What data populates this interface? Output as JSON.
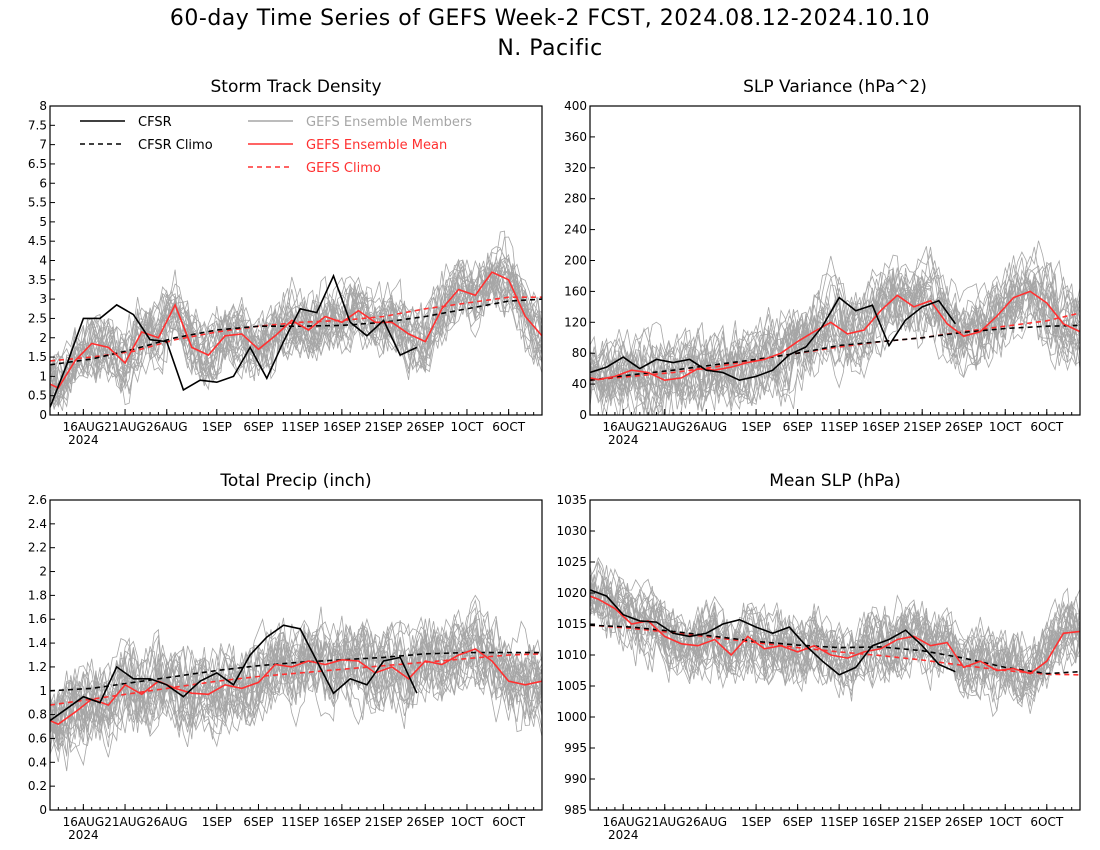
{
  "figure": {
    "title": "60-day Time Series of GEFS Week-2 FCST, 2024.08.12-2024.10.10",
    "subtitle": "N. Pacific"
  },
  "colors": {
    "cfsr": "#000000",
    "cfsr_climo": "#000000",
    "members": "#a6a6a6",
    "ens_mean": "#ff3030",
    "gefs_climo": "#ff3030",
    "frame": "#000000",
    "background": "#ffffff"
  },
  "chart_data": [
    {
      "type": "line",
      "title": "Storm Track Density",
      "x_ticks": [
        "16AUG",
        "21AUG",
        "26AUG",
        "1SEP",
        "6SEP",
        "11SEP",
        "16SEP",
        "21SEP",
        "26SEP",
        "1OCT",
        "6OCT"
      ],
      "x_tick_days": [
        4,
        9,
        14,
        20,
        25,
        30,
        35,
        40,
        45,
        50,
        55
      ],
      "x_year_label": "2024",
      "x_range_days": [
        0,
        59
      ],
      "ylim": [
        0,
        8
      ],
      "y_ticks": [
        "0",
        "0.5",
        "1",
        "1.5",
        "2",
        "2.5",
        "3",
        "3.5",
        "4",
        "4.5",
        "5",
        "5.5",
        "6",
        "6.5",
        "7",
        "7.5",
        "8"
      ],
      "legend": [
        {
          "label": "CFSR",
          "style": "solid-black"
        },
        {
          "label": "CFSR Climo",
          "style": "dashed-black"
        },
        {
          "label": "GEFS Ensemble Members",
          "style": "solid-gray"
        },
        {
          "label": "GEFS Ensemble Mean",
          "style": "solid-red"
        },
        {
          "label": "GEFS Climo",
          "style": "dashed-red"
        }
      ],
      "legend_position": "top-left",
      "member_band": {
        "mean_offset": 0.0,
        "spread": 0.7,
        "count": 24
      },
      "series": [
        {
          "name": "CFSR",
          "days": [
            0,
            2,
            4,
            6,
            8,
            10,
            12,
            14,
            16,
            18,
            20,
            22,
            24,
            26,
            28,
            30,
            32,
            34,
            36,
            38,
            40,
            42,
            44
          ],
          "values": [
            0.2,
            1.3,
            2.5,
            2.5,
            2.85,
            2.6,
            1.95,
            1.9,
            0.65,
            0.9,
            0.85,
            1.0,
            1.75,
            0.95,
            1.9,
            2.75,
            2.65,
            3.6,
            2.4,
            2.05,
            2.45,
            1.55,
            1.75
          ]
        },
        {
          "name": "CFSR Climo",
          "days": [
            0,
            5,
            10,
            15,
            20,
            25,
            30,
            35,
            40,
            45,
            50,
            55,
            59
          ],
          "values": [
            1.3,
            1.45,
            1.7,
            2.0,
            2.2,
            2.3,
            2.3,
            2.32,
            2.4,
            2.55,
            2.75,
            2.95,
            3.0
          ]
        },
        {
          "name": "GEFS Ensemble Mean",
          "days": [
            0,
            1,
            3,
            5,
            7,
            9,
            11,
            13,
            15,
            17,
            19,
            21,
            23,
            25,
            27,
            29,
            31,
            33,
            35,
            37,
            39,
            41,
            43,
            45,
            47,
            49,
            51,
            53,
            55,
            57,
            59
          ],
          "values": [
            0.8,
            0.7,
            1.4,
            1.85,
            1.75,
            1.35,
            2.15,
            2.0,
            2.85,
            1.75,
            1.55,
            2.05,
            2.1,
            1.7,
            2.05,
            2.45,
            2.2,
            2.55,
            2.4,
            2.7,
            2.4,
            2.4,
            2.1,
            1.9,
            2.75,
            3.25,
            3.1,
            3.7,
            3.5,
            2.55,
            2.05
          ]
        },
        {
          "name": "GEFS Climo",
          "days": [
            0,
            5,
            10,
            15,
            20,
            25,
            30,
            35,
            40,
            45,
            50,
            55,
            59
          ],
          "values": [
            1.4,
            1.5,
            1.65,
            1.95,
            2.15,
            2.3,
            2.4,
            2.45,
            2.55,
            2.75,
            2.9,
            3.05,
            3.05
          ]
        }
      ]
    },
    {
      "type": "line",
      "title": "SLP Variance (hPa^2)",
      "x_ticks": [
        "16AUG",
        "21AUG",
        "26AUG",
        "1SEP",
        "6SEP",
        "11SEP",
        "16SEP",
        "21SEP",
        "26SEP",
        "1OCT",
        "6OCT"
      ],
      "x_tick_days": [
        4,
        9,
        14,
        20,
        25,
        30,
        35,
        40,
        45,
        50,
        55
      ],
      "x_year_label": "2024",
      "x_range_days": [
        0,
        59
      ],
      "ylim": [
        0,
        400
      ],
      "y_ticks": [
        "0",
        "40",
        "80",
        "120",
        "160",
        "200",
        "240",
        "280",
        "320",
        "360",
        "400"
      ],
      "member_band": {
        "mean_offset": 10.0,
        "spread": 40.0,
        "count": 24
      },
      "series": [
        {
          "name": "CFSR",
          "days": [
            0,
            2,
            4,
            6,
            8,
            10,
            12,
            14,
            16,
            18,
            20,
            22,
            24,
            26,
            28,
            30,
            32,
            34,
            36,
            38,
            40,
            42,
            44
          ],
          "values": [
            55,
            62,
            75,
            60,
            72,
            68,
            72,
            58,
            55,
            45,
            50,
            58,
            78,
            88,
            115,
            152,
            135,
            142,
            90,
            123,
            140,
            148,
            118
          ]
        },
        {
          "name": "CFSR Climo",
          "days": [
            0,
            5,
            10,
            15,
            20,
            25,
            30,
            35,
            40,
            45,
            50,
            55,
            59
          ],
          "values": [
            45,
            52,
            58,
            65,
            72,
            80,
            90,
            95,
            100,
            107,
            112,
            115,
            116
          ]
        },
        {
          "name": "GEFS Ensemble Mean",
          "days": [
            0,
            1,
            3,
            5,
            7,
            9,
            11,
            13,
            15,
            17,
            19,
            21,
            23,
            25,
            27,
            29,
            31,
            33,
            35,
            37,
            39,
            41,
            43,
            45,
            47,
            49,
            51,
            53,
            55,
            57,
            59
          ],
          "values": [
            48,
            46,
            50,
            58,
            55,
            45,
            48,
            60,
            58,
            62,
            68,
            72,
            80,
            95,
            108,
            120,
            105,
            110,
            135,
            155,
            140,
            148,
            118,
            102,
            108,
            128,
            152,
            160,
            145,
            118,
            108
          ]
        },
        {
          "name": "GEFS Climo",
          "days": [
            0,
            5,
            10,
            15,
            20,
            25,
            30,
            35,
            40,
            45,
            50,
            55,
            59
          ],
          "values": [
            45,
            50,
            55,
            62,
            72,
            80,
            88,
            95,
            100,
            108,
            115,
            122,
            132
          ]
        }
      ]
    },
    {
      "type": "line",
      "title": "Total Precip (inch)",
      "x_ticks": [
        "16AUG",
        "21AUG",
        "26AUG",
        "1SEP",
        "6SEP",
        "11SEP",
        "16SEP",
        "21SEP",
        "26SEP",
        "1OCT",
        "6OCT"
      ],
      "x_tick_days": [
        4,
        9,
        14,
        20,
        25,
        30,
        35,
        40,
        45,
        50,
        55
      ],
      "x_year_label": "2024",
      "x_range_days": [
        0,
        59
      ],
      "ylim": [
        0,
        2.6
      ],
      "y_ticks": [
        "0",
        "0.2",
        "0.4",
        "0.6",
        "0.8",
        "1",
        "1.2",
        "1.4",
        "1.6",
        "1.8",
        "2",
        "2.2",
        "2.4",
        "2.6"
      ],
      "member_band": {
        "mean_offset": 0.0,
        "spread": 0.28,
        "count": 24
      },
      "series": [
        {
          "name": "CFSR",
          "days": [
            0,
            2,
            4,
            6,
            8,
            10,
            12,
            14,
            16,
            18,
            20,
            22,
            24,
            26,
            28,
            30,
            32,
            34,
            36,
            38,
            40,
            42,
            44
          ],
          "values": [
            0.75,
            0.85,
            0.95,
            0.9,
            1.2,
            1.1,
            1.1,
            1.05,
            0.95,
            1.08,
            1.15,
            1.05,
            1.3,
            1.45,
            1.55,
            1.52,
            1.25,
            0.98,
            1.1,
            1.05,
            1.25,
            1.28,
            0.98
          ]
        },
        {
          "name": "CFSR Climo",
          "days": [
            0,
            5,
            10,
            15,
            20,
            25,
            30,
            35,
            40,
            45,
            50,
            55,
            59
          ],
          "values": [
            1.0,
            1.02,
            1.07,
            1.12,
            1.17,
            1.21,
            1.24,
            1.26,
            1.28,
            1.31,
            1.32,
            1.32,
            1.32
          ]
        },
        {
          "name": "GEFS Ensemble Mean",
          "days": [
            0,
            1,
            3,
            5,
            7,
            9,
            11,
            13,
            15,
            17,
            19,
            21,
            23,
            25,
            27,
            29,
            31,
            33,
            35,
            37,
            39,
            41,
            43,
            45,
            47,
            49,
            51,
            53,
            55,
            57,
            59
          ],
          "values": [
            0.75,
            0.72,
            0.82,
            0.93,
            0.88,
            1.05,
            0.97,
            1.08,
            1.02,
            0.98,
            0.97,
            1.05,
            1.02,
            1.07,
            1.22,
            1.2,
            1.25,
            1.22,
            1.26,
            1.25,
            1.15,
            1.2,
            1.1,
            1.25,
            1.22,
            1.3,
            1.35,
            1.25,
            1.08,
            1.05,
            1.08
          ]
        },
        {
          "name": "GEFS Climo",
          "days": [
            0,
            5,
            10,
            15,
            20,
            25,
            30,
            35,
            40,
            45,
            50,
            55,
            59
          ],
          "values": [
            0.88,
            0.93,
            0.98,
            1.03,
            1.08,
            1.12,
            1.15,
            1.18,
            1.21,
            1.24,
            1.27,
            1.3,
            1.31
          ]
        }
      ]
    },
    {
      "type": "line",
      "title": "Mean SLP (hPa)",
      "x_ticks": [
        "16AUG",
        "21AUG",
        "26AUG",
        "1SEP",
        "6SEP",
        "11SEP",
        "16SEP",
        "21SEP",
        "26SEP",
        "1OCT",
        "6OCT"
      ],
      "x_tick_days": [
        4,
        9,
        14,
        20,
        25,
        30,
        35,
        40,
        45,
        50,
        55
      ],
      "x_year_label": "2024",
      "x_range_days": [
        0,
        59
      ],
      "ylim": [
        985,
        1035
      ],
      "y_ticks": [
        "985",
        "990",
        "995",
        "1000",
        "1005",
        "1010",
        "1015",
        "1020",
        "1025",
        "1030",
        "1035"
      ],
      "member_band": {
        "mean_offset": 0.0,
        "spread": 4.5,
        "count": 24
      },
      "series": [
        {
          "name": "CFSR",
          "days": [
            0,
            2,
            4,
            6,
            8,
            10,
            12,
            14,
            16,
            18,
            20,
            22,
            24,
            26,
            28,
            30,
            32,
            34,
            36,
            38,
            40,
            42,
            44
          ],
          "values": [
            1020.5,
            1019.5,
            1016.5,
            1015.5,
            1015.3,
            1013.5,
            1013.0,
            1013.5,
            1015.0,
            1015.7,
            1014.5,
            1013.5,
            1014.5,
            1011.5,
            1009.0,
            1006.8,
            1008.0,
            1011.5,
            1012.5,
            1014.0,
            1011.5,
            1008.5,
            1007.3
          ]
        },
        {
          "name": "CFSR Climo",
          "days": [
            0,
            5,
            10,
            15,
            20,
            25,
            30,
            35,
            40,
            45,
            50,
            55,
            59
          ],
          "values": [
            1014.8,
            1014.5,
            1013.8,
            1013.0,
            1012.2,
            1011.6,
            1011.2,
            1011.3,
            1010.7,
            1009.5,
            1008.0,
            1007.0,
            1007.3
          ]
        },
        {
          "name": "GEFS Ensemble Mean",
          "days": [
            0,
            1,
            3,
            5,
            7,
            9,
            11,
            13,
            15,
            17,
            19,
            21,
            23,
            25,
            27,
            29,
            31,
            33,
            35,
            37,
            39,
            41,
            43,
            45,
            47,
            49,
            51,
            53,
            55,
            57,
            59
          ],
          "values": [
            1019.5,
            1019.0,
            1017.5,
            1015.0,
            1015.5,
            1013.0,
            1011.8,
            1011.5,
            1012.5,
            1010.0,
            1013.0,
            1011.0,
            1011.5,
            1010.5,
            1011.5,
            1010.0,
            1009.5,
            1010.5,
            1011.0,
            1012.5,
            1013.0,
            1011.5,
            1012.0,
            1008.0,
            1009.0,
            1007.5,
            1007.8,
            1007.0,
            1009.0,
            1013.5,
            1013.8
          ]
        },
        {
          "name": "GEFS Climo",
          "days": [
            0,
            5,
            10,
            15,
            20,
            25,
            30,
            35,
            40,
            45,
            50,
            55,
            59
          ],
          "values": [
            1014.8,
            1014.3,
            1013.6,
            1012.8,
            1012.0,
            1011.2,
            1010.5,
            1009.9,
            1009.2,
            1008.3,
            1007.5,
            1006.9,
            1006.8
          ]
        }
      ]
    }
  ]
}
